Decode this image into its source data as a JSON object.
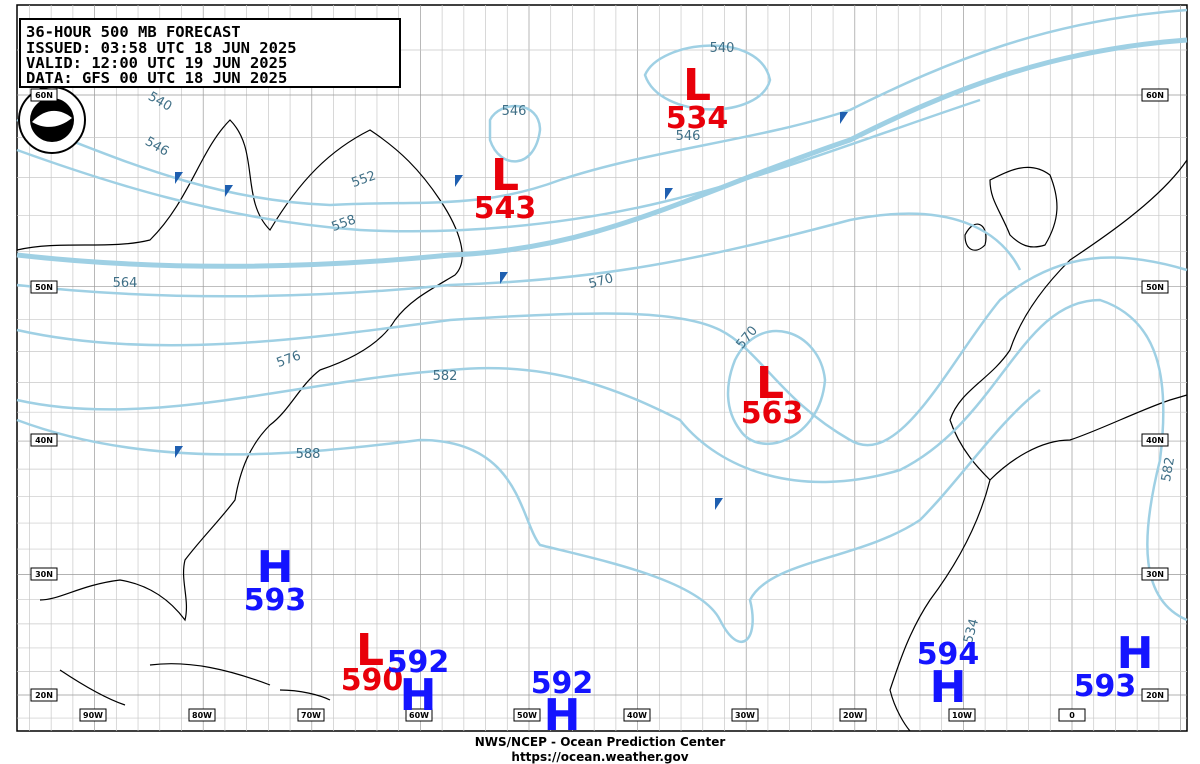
{
  "header": {
    "lines": [
      "36-HOUR 500 MB FORECAST",
      "ISSUED: 03:58 UTC 18 JUN 2025",
      "VALID:  12:00 UTC 19 JUN 2025",
      "DATA:   GFS 00 UTC 18 JUN 2025"
    ]
  },
  "centers": [
    {
      "kind": "L",
      "value": 534
    },
    {
      "kind": "L",
      "value": 543
    },
    {
      "kind": "L",
      "value": 563
    },
    {
      "kind": "H",
      "value": 593
    },
    {
      "kind": "L",
      "value": 590
    },
    {
      "kind": "H",
      "value": 592
    },
    {
      "kind": "H",
      "value": 592
    },
    {
      "kind": "H",
      "value": 594
    },
    {
      "kind": "H",
      "value": 593
    }
  ],
  "contour_labels": [
    540,
    546,
    546,
    540,
    546,
    552,
    558,
    564,
    570,
    570,
    576,
    582,
    588,
    582,
    534
  ],
  "lon_labels": [
    "90W",
    "80W",
    "70W",
    "60W",
    "50W",
    "40W",
    "30W",
    "20W",
    "10W",
    "0"
  ],
  "lat_labels": [
    "60N",
    "50N",
    "40N",
    "30N",
    "20N"
  ],
  "footer": {
    "line1": "NWS/NCEP - Ocean Prediction Center",
    "line2": "https://ocean.weather.gov"
  }
}
